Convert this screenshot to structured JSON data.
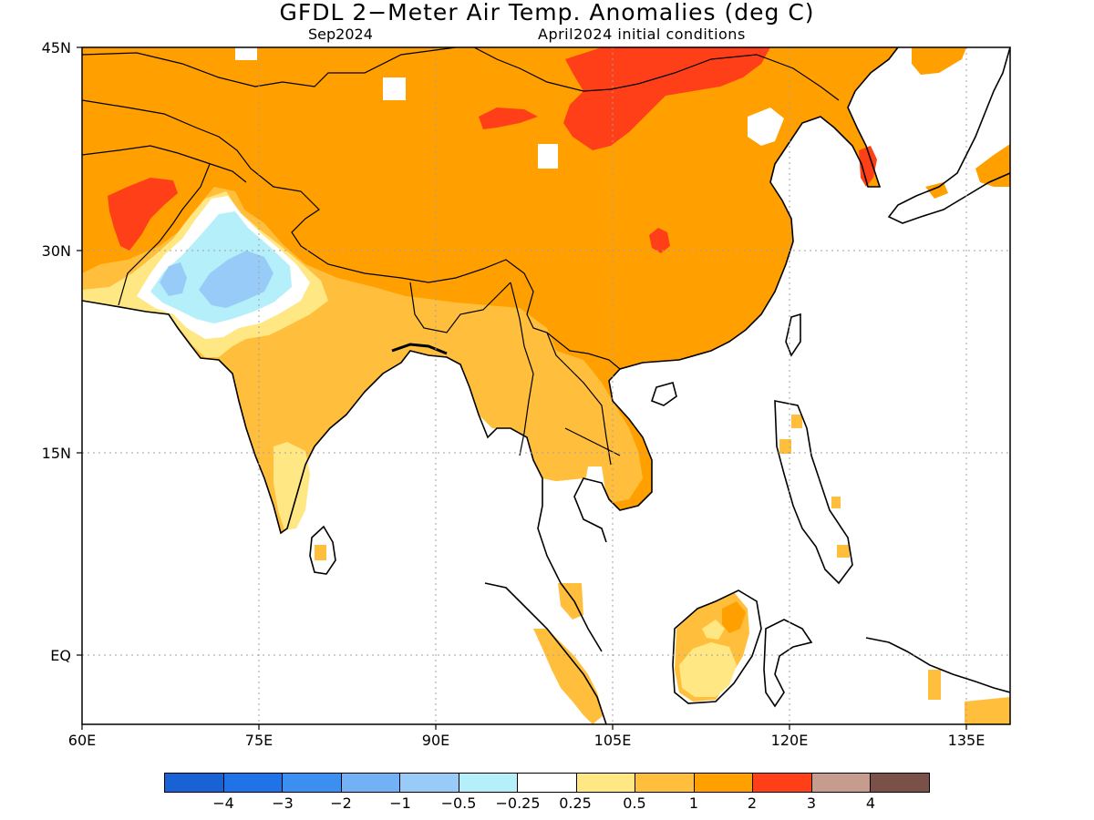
{
  "title": "GFDL 2−Meter Air Temp. Anomalies (deg C)",
  "subtitle_left": "Sep2024",
  "subtitle_right": "April2024 initial conditions",
  "lat_labels": [
    "45N",
    "30N",
    "15N",
    "EQ"
  ],
  "lon_labels": [
    "60E",
    "75E",
    "90E",
    "105E",
    "120E",
    "135E"
  ],
  "colorbar": {
    "colors": [
      "#1862d6",
      "#1f72e8",
      "#3b8ff0",
      "#72b1f5",
      "#98cbf8",
      "#b4effa",
      "#ffffff",
      "#ffe783",
      "#ffbf3c",
      "#ff9f00",
      "#ff3f17",
      "#c69c8e",
      "#7a5148"
    ],
    "labels": [
      "−4",
      "−3",
      "−2",
      "−1",
      "−0.5",
      "−0.25",
      "0.25",
      "0.5",
      "1",
      "2",
      "3",
      "4"
    ]
  },
  "fill_colors": {
    "orange": "#ff9f00",
    "light_orange": "#ffbf3c",
    "yellow": "#ffe783",
    "red": "#ff3f17",
    "light_blue": "#b4effa",
    "blue": "#98cbf8",
    "mid_blue": "#72b1f5"
  }
}
